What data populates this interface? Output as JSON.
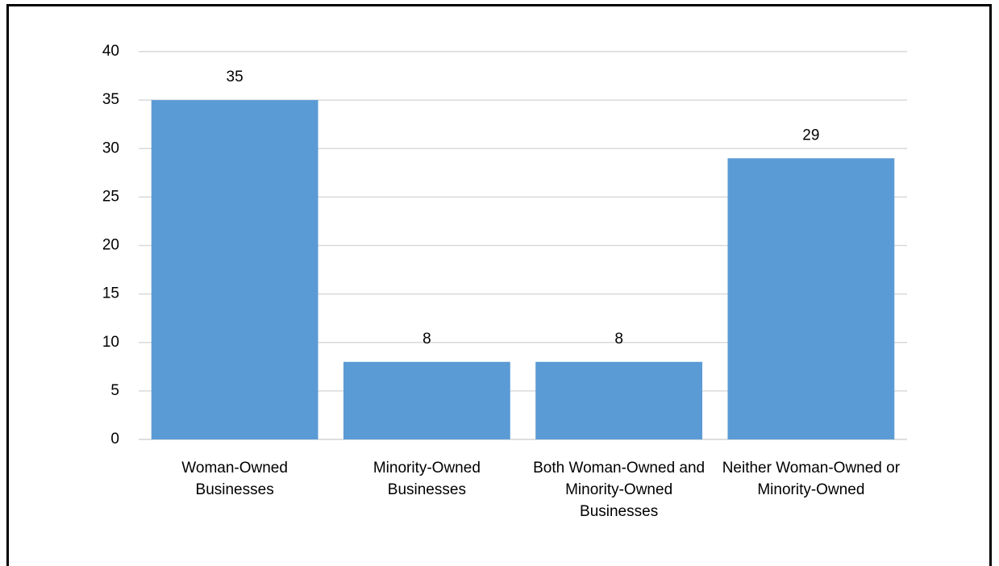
{
  "chart_data": {
    "type": "bar",
    "categories": [
      "Woman-Owned Businesses",
      "Minority-Owned Businesses",
      "Both Woman-Owned and Minority-Owned Businesses",
      "Neither Woman-Owned or Minority-Owned"
    ],
    "values": [
      35,
      8,
      8,
      29
    ],
    "color": "#5b9bd5",
    "ylim": [
      0,
      40
    ],
    "yticks": [
      0,
      5,
      10,
      15,
      20,
      25,
      30,
      35,
      40
    ],
    "grid": true
  }
}
